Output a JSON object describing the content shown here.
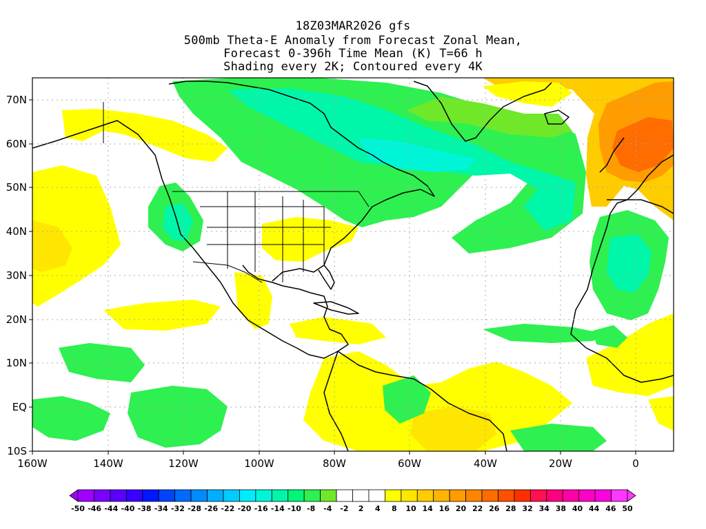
{
  "title": {
    "line1": "18Z03MAR2026 gfs",
    "line2": "500mb Theta-E Anomaly from Forecast Zonal Mean,",
    "line3": "Forecast 0-396h Time Mean (K) T=66 h",
    "line4": "Shading every 2K; Contoured every 4K"
  },
  "map": {
    "lon_range": [
      -160,
      10
    ],
    "lat_range": [
      -10,
      75
    ],
    "lat_labels": [
      "70N",
      "60N",
      "50N",
      "40N",
      "30N",
      "20N",
      "10N",
      "EQ",
      "10S"
    ],
    "lon_labels": [
      "160W",
      "140W",
      "120W",
      "100W",
      "80W",
      "60W",
      "40W",
      "20W",
      "0"
    ]
  },
  "colorbar": {
    "labels": [
      "-50",
      "-46",
      "-44",
      "-40",
      "-38",
      "-34",
      "-32",
      "-28",
      "-26",
      "-22",
      "-20",
      "-16",
      "-14",
      "-10",
      "-8",
      "-4",
      "-2",
      "2",
      "4",
      "8",
      "10",
      "14",
      "16",
      "20",
      "22",
      "26",
      "28",
      "32",
      "34",
      "38",
      "40",
      "44",
      "46",
      "50"
    ],
    "colors": [
      "#a000ff",
      "#7a00ff",
      "#5a00ff",
      "#3a00ff",
      "#0018ff",
      "#0044ff",
      "#006aff",
      "#008cff",
      "#00aeff",
      "#00ccff",
      "#00ecff",
      "#00f5d8",
      "#00f6a8",
      "#00f676",
      "#2ef050",
      "#6fe82a",
      "#ffffff",
      "#ffffff",
      "#ffffff",
      "#ffff00",
      "#ffe600",
      "#ffcc00",
      "#ffb400",
      "#ff9c00",
      "#ff8400",
      "#ff6c00",
      "#ff5000",
      "#ff3000",
      "#ff1050",
      "#ff0080",
      "#ff00a8",
      "#ff00c8",
      "#ff00e0",
      "#ff38ff"
    ]
  }
}
